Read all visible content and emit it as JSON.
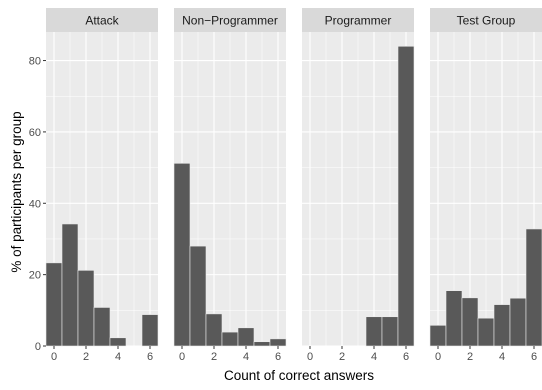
{
  "chart_data": {
    "type": "bar",
    "layout": "facet_wrap",
    "xlabel": "Count of correct answers",
    "ylabel": "% of participants per group",
    "x_ticks": [
      "0",
      "2",
      "4",
      "6"
    ],
    "y_ticks": [
      "0",
      "20",
      "40",
      "60",
      "80"
    ],
    "xlim": [
      -0.5,
      6.5
    ],
    "ylim": [
      0,
      88
    ],
    "grid": true,
    "colors": {
      "bar": "#595959",
      "panel_bg": "#ebebeb",
      "strip_bg": "#d9d9d9",
      "grid": "#ffffff"
    },
    "categories": [
      0,
      1,
      2,
      3,
      4,
      5,
      6
    ],
    "panels": [
      {
        "name": "Attack",
        "values": [
          23.3,
          34.2,
          21.2,
          10.8,
          2.3,
          0,
          8.8
        ]
      },
      {
        "name": "Non−Programmer",
        "values": [
          51.2,
          28.0,
          9.0,
          3.9,
          5.1,
          1.2,
          2.0
        ]
      },
      {
        "name": "Programmer",
        "values": [
          0,
          0,
          0,
          0,
          8.2,
          8.2,
          84.0
        ]
      },
      {
        "name": "Test Group",
        "values": [
          5.8,
          15.5,
          13.5,
          7.8,
          11.6,
          13.4,
          32.8
        ]
      }
    ]
  }
}
